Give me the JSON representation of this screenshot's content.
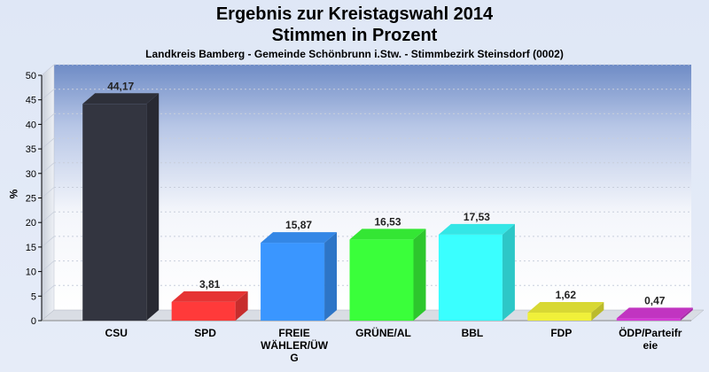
{
  "chart_data": {
    "type": "bar",
    "title": "Ergebnis zur Kreistagswahl 2014",
    "subtitle": "Stimmen in Prozent",
    "caption": "Landkreis Bamberg - Gemeinde Schönbrunn i.Stw. - Stimmbezirk Steinsdorf (0002)",
    "ylabel": "%",
    "xlabel": "",
    "ylim": [
      0,
      50
    ],
    "yticks": [
      0,
      5,
      10,
      15,
      20,
      25,
      30,
      35,
      40,
      45,
      50
    ],
    "grid": true,
    "categories": [
      [
        "CSU"
      ],
      [
        "SPD"
      ],
      [
        "FREIE",
        "WÄHLER/ÜW",
        "G"
      ],
      [
        "GRÜNE/AL"
      ],
      [
        "BBL"
      ],
      [
        "FDP"
      ],
      [
        "ÖDP/Parteifr",
        "eie"
      ]
    ],
    "values": [
      44.17,
      3.81,
      15.87,
      16.53,
      17.53,
      1.62,
      0.47
    ],
    "value_labels": [
      "44,17",
      "3,81",
      "15,87",
      "16,53",
      "17,53",
      "1,62",
      "0,47"
    ],
    "colors": [
      "#333540",
      "#ff3a3a",
      "#3a96ff",
      "#3aff3a",
      "#3affff",
      "#f0f03a",
      "#d63ad6"
    ]
  }
}
